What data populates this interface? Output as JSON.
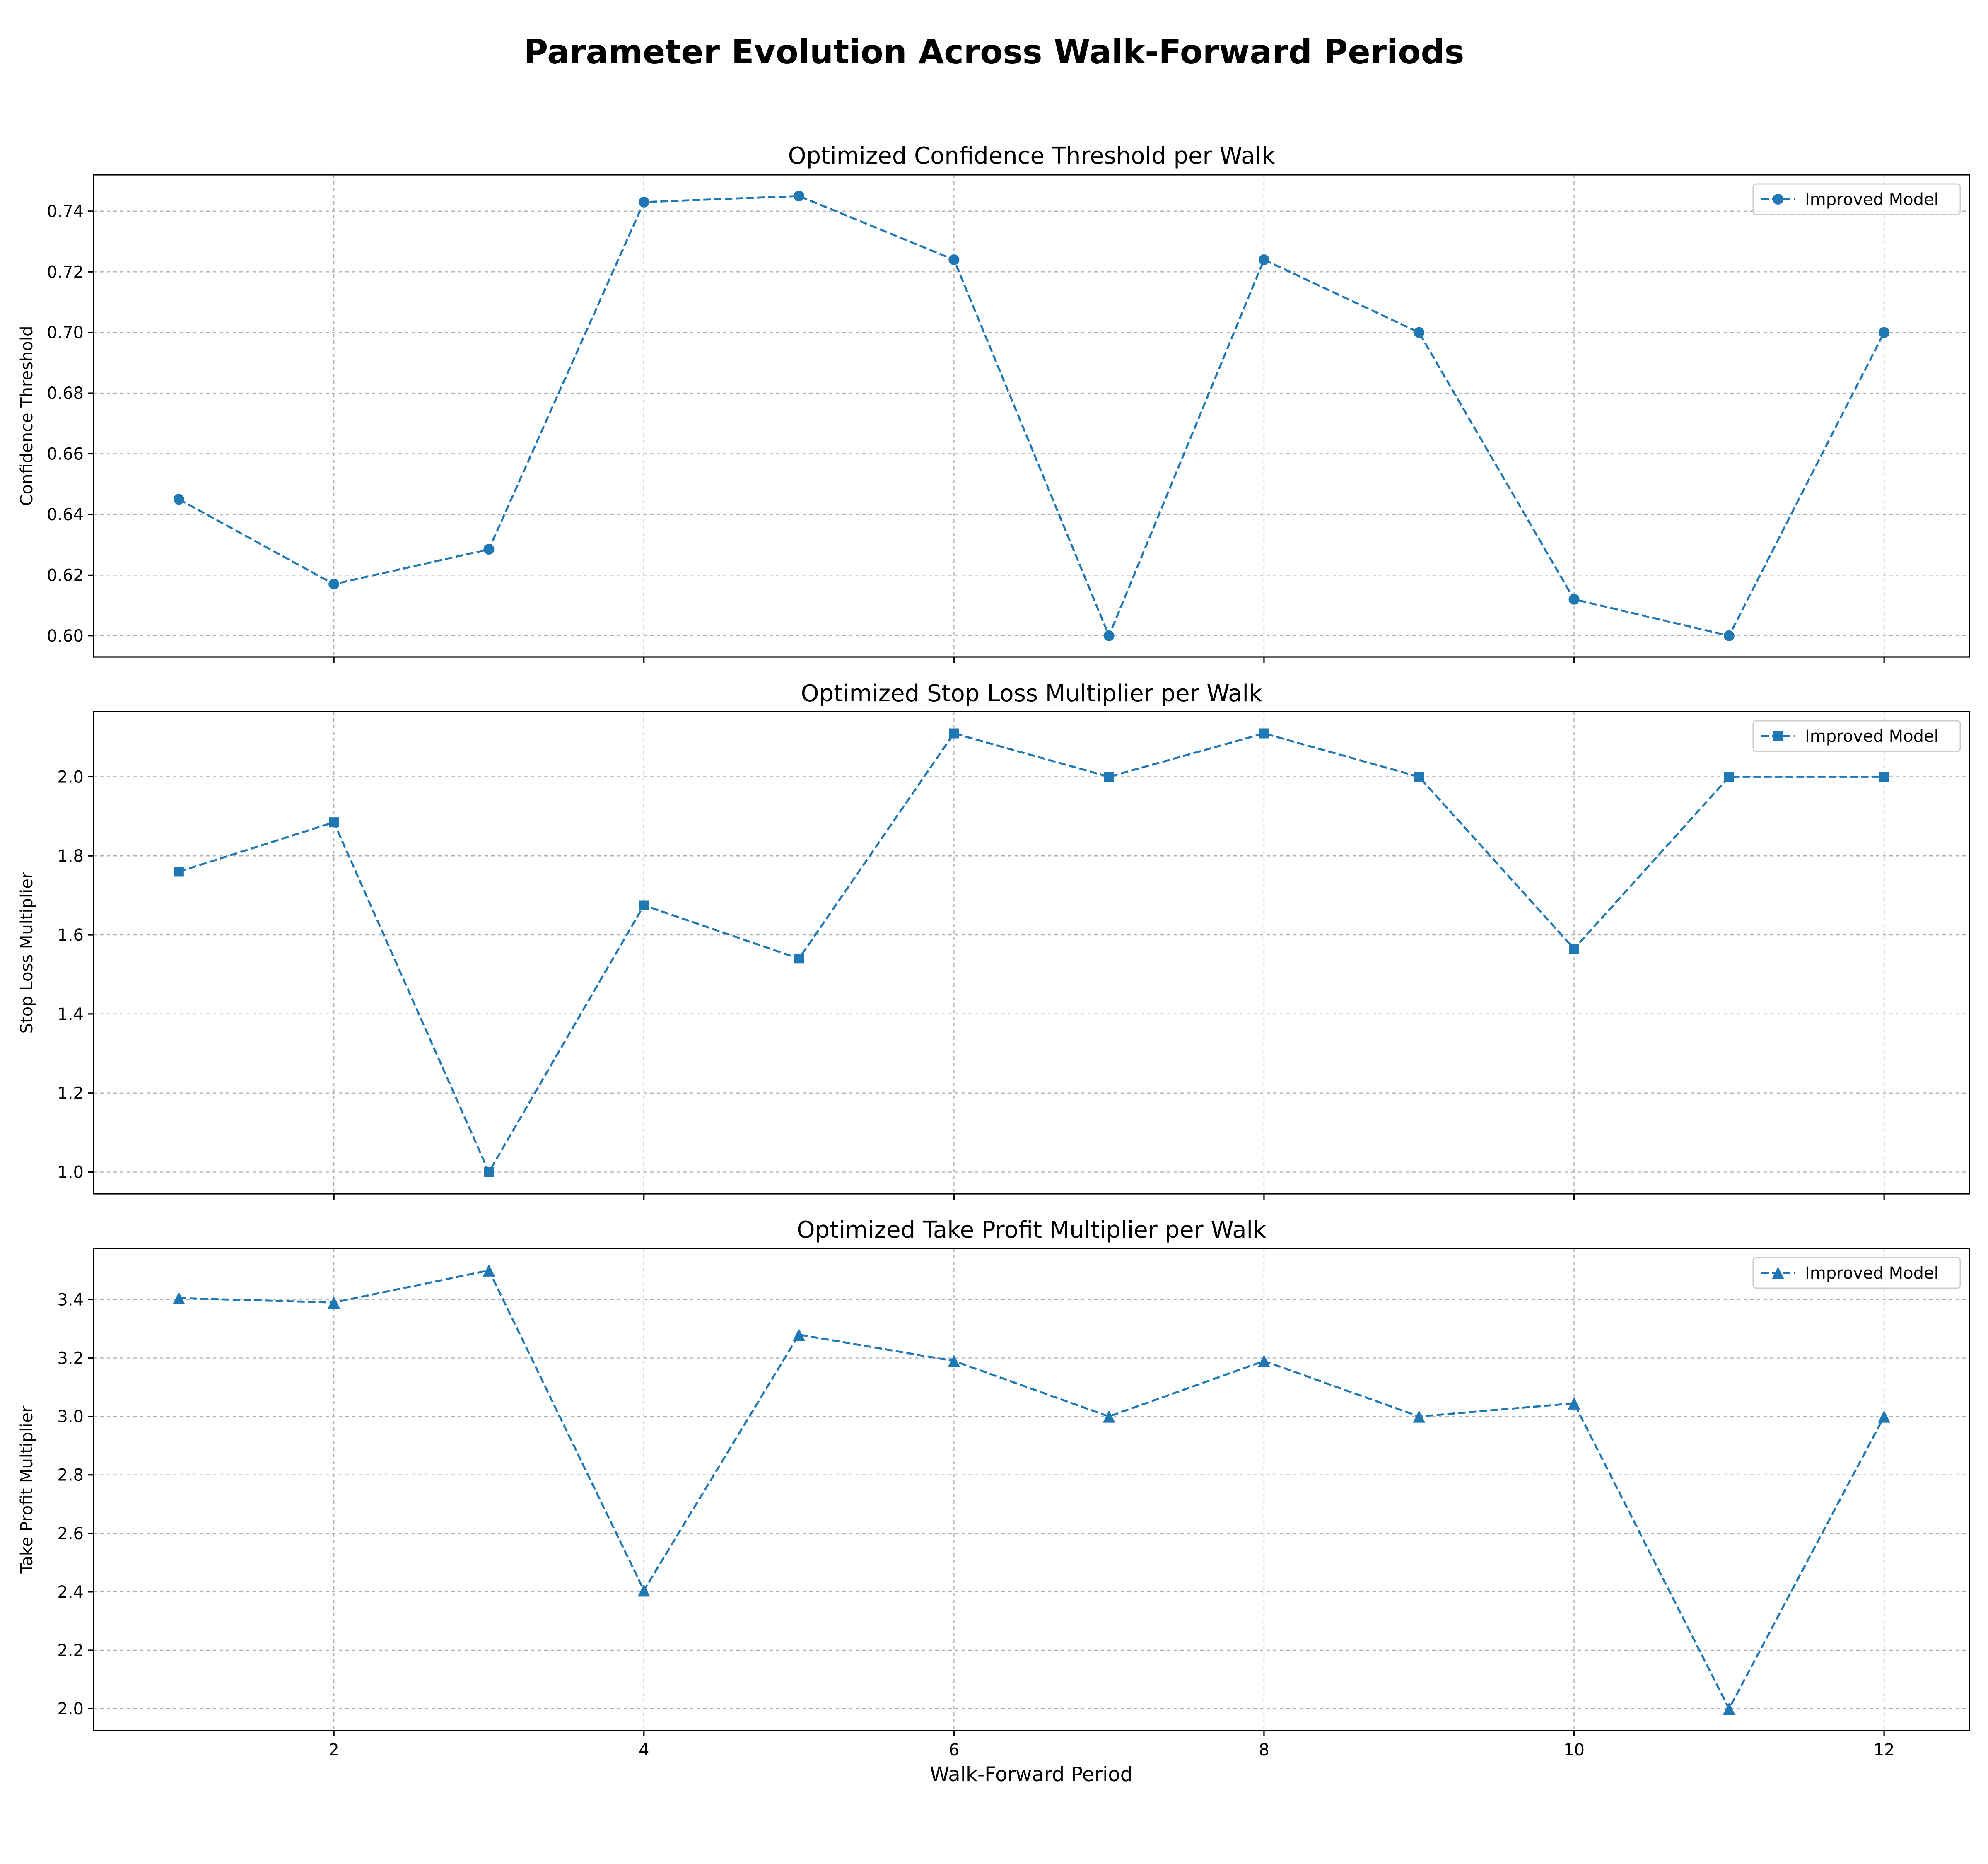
{
  "chart_data": {
    "type": "line",
    "suptitle": "Parameter Evolution Across Walk-Forward Periods",
    "xlabel": "Walk-Forward Period",
    "x": [
      1,
      2,
      3,
      4,
      5,
      6,
      7,
      8,
      9,
      10,
      11,
      12
    ],
    "xlim": [
      0.45,
      12.55
    ],
    "xticks": [
      2,
      4,
      6,
      8,
      10,
      12
    ],
    "grid": true,
    "legend_placement": "top-right",
    "colors": {
      "series": "#1f77b4"
    },
    "subplots": [
      {
        "title": "Optimized Confidence Threshold per Walk",
        "ylabel": "Confidence Threshold",
        "ylim": [
          0.593,
          0.752
        ],
        "yticks": [
          0.6,
          0.62,
          0.64,
          0.66,
          0.68,
          0.7,
          0.72,
          0.74
        ],
        "ytick_decimals": 2,
        "marker": "circle",
        "series": [
          {
            "name": "Improved Model",
            "values": [
              0.645,
              0.617,
              0.6285,
              0.743,
              0.745,
              0.724,
              0.6,
              0.724,
              0.7,
              0.612,
              0.6,
              0.7
            ]
          }
        ]
      },
      {
        "title": "Optimized Stop Loss Multiplier per Walk",
        "ylabel": "Stop Loss Multiplier",
        "ylim": [
          0.945,
          2.165
        ],
        "yticks": [
          1.0,
          1.2,
          1.4,
          1.6,
          1.8,
          2.0
        ],
        "ytick_decimals": 1,
        "marker": "square",
        "series": [
          {
            "name": "Improved Model",
            "values": [
              1.76,
              1.885,
              1.0,
              1.675,
              1.54,
              2.11,
              2.0,
              2.11,
              2.0,
              1.565,
              2.0,
              2.0
            ]
          }
        ]
      },
      {
        "title": "Optimized Take Profit Multiplier per Walk",
        "ylabel": "Take Profit Multiplier",
        "ylim": [
          1.925,
          3.575
        ],
        "yticks": [
          2.0,
          2.2,
          2.4,
          2.6,
          2.8,
          3.0,
          3.2,
          3.4
        ],
        "ytick_decimals": 1,
        "marker": "triangle",
        "series": [
          {
            "name": "Improved Model",
            "values": [
              3.405,
              3.39,
              3.5,
              2.405,
              3.28,
              3.19,
              3.0,
              3.19,
              3.0,
              3.045,
              2.0,
              3.0
            ]
          }
        ]
      }
    ]
  }
}
